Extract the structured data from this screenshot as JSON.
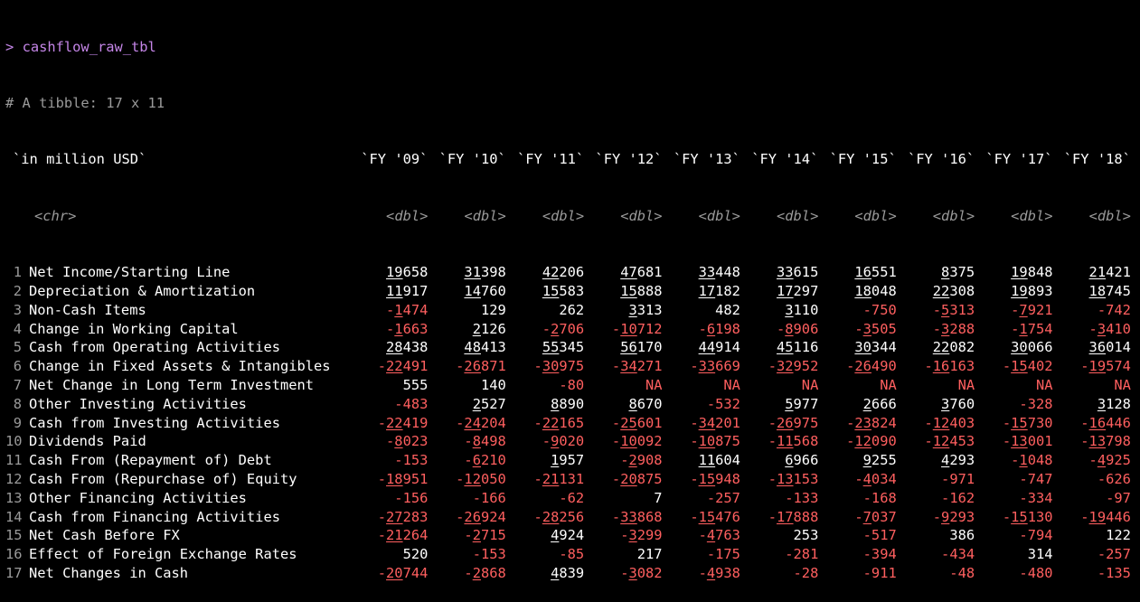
{
  "console": {
    "prompt": ">",
    "command": "cashflow_raw_tbl",
    "tibble_info": "# A tibble: 17 x 11"
  },
  "header": {
    "label_col": "`in million USD`",
    "label_type": "<chr>",
    "cols": [
      "`FY '09`",
      "`FY '10`",
      "`FY '11`",
      "`FY '12`",
      "`FY '13`",
      "`FY '14`",
      "`FY '15`",
      "`FY '16`",
      "`FY '17`",
      "`FY '18`"
    ],
    "types": [
      "<dbl>",
      "<dbl>",
      "<dbl>",
      "<dbl>",
      "<dbl>",
      "<dbl>",
      "<dbl>",
      "<dbl>",
      "<dbl>",
      "<dbl>"
    ]
  },
  "rows": [
    {
      "num": "1",
      "label": "Net Income/Starting Line",
      "values": [
        "19658",
        "31398",
        "42206",
        "47681",
        "33448",
        "33615",
        "16551",
        "8375",
        "19848",
        "21421"
      ]
    },
    {
      "num": "2",
      "label": "Depreciation & Amortization",
      "values": [
        "11917",
        "14760",
        "15583",
        "15888",
        "17182",
        "17297",
        "18048",
        "22308",
        "19893",
        "18745"
      ]
    },
    {
      "num": "3",
      "label": "Non-Cash Items",
      "values": [
        "-1474",
        "129",
        "262",
        "3313",
        "482",
        "3110",
        "-750",
        "-5313",
        "-7921",
        "-742"
      ]
    },
    {
      "num": "4",
      "label": "Change in Working Capital",
      "values": [
        "-1663",
        "2126",
        "-2706",
        "-10712",
        "-6198",
        "-8906",
        "-3505",
        "-3288",
        "-1754",
        "-3410"
      ]
    },
    {
      "num": "5",
      "label": "Cash from Operating Activities",
      "values": [
        "28438",
        "48413",
        "55345",
        "56170",
        "44914",
        "45116",
        "30344",
        "22082",
        "30066",
        "36014"
      ]
    },
    {
      "num": "6",
      "label": "Change in Fixed Assets & Intangibles",
      "values": [
        "-22491",
        "-26871",
        "-30975",
        "-34271",
        "-33669",
        "-32952",
        "-26490",
        "-16163",
        "-15402",
        "-19574"
      ]
    },
    {
      "num": "7",
      "label": "Net Change in Long Term Investment",
      "values": [
        "555",
        "140",
        "-80",
        "NA",
        "NA",
        "NA",
        "NA",
        "NA",
        "NA",
        "NA"
      ]
    },
    {
      "num": "8",
      "label": "Other Investing Activities",
      "values": [
        "-483",
        "2527",
        "8890",
        "8670",
        "-532",
        "5977",
        "2666",
        "3760",
        "-328",
        "3128"
      ]
    },
    {
      "num": "9",
      "label": "Cash from Investing Activities",
      "values": [
        "-22419",
        "-24204",
        "-22165",
        "-25601",
        "-34201",
        "-26975",
        "-23824",
        "-12403",
        "-15730",
        "-16446"
      ]
    },
    {
      "num": "10",
      "label": "Dividends Paid",
      "values": [
        "-8023",
        "-8498",
        "-9020",
        "-10092",
        "-10875",
        "-11568",
        "-12090",
        "-12453",
        "-13001",
        "-13798"
      ]
    },
    {
      "num": "11",
      "label": "Cash From (Repayment of) Debt",
      "values": [
        "-153",
        "-6210",
        "1957",
        "-2908",
        "11604",
        "6966",
        "9255",
        "4293",
        "-1048",
        "-4925"
      ]
    },
    {
      "num": "12",
      "label": "Cash From (Repurchase of) Equity",
      "values": [
        "-18951",
        "-12050",
        "-21131",
        "-20875",
        "-15948",
        "-13153",
        "-4034",
        "-971",
        "-747",
        "-626"
      ]
    },
    {
      "num": "13",
      "label": "Other Financing Activities",
      "values": [
        "-156",
        "-166",
        "-62",
        "7",
        "-257",
        "-133",
        "-168",
        "-162",
        "-334",
        "-97"
      ]
    },
    {
      "num": "14",
      "label": "Cash from Financing Activities",
      "values": [
        "-27283",
        "-26924",
        "-28256",
        "-33868",
        "-15476",
        "-17888",
        "-7037",
        "-9293",
        "-15130",
        "-19446"
      ]
    },
    {
      "num": "15",
      "label": "Net Cash Before FX",
      "values": [
        "-21264",
        "-2715",
        "4924",
        "-3299",
        "-4763",
        "253",
        "-517",
        "386",
        "-794",
        "122"
      ]
    },
    {
      "num": "16",
      "label": "Effect of Foreign Exchange Rates",
      "values": [
        "520",
        "-153",
        "-85",
        "217",
        "-175",
        "-281",
        "-394",
        "-434",
        "314",
        "-257"
      ]
    },
    {
      "num": "17",
      "label": "Net Changes in Cash",
      "values": [
        "-20744",
        "-2868",
        "4839",
        "-3082",
        "-4938",
        "-28",
        "-911",
        "-48",
        "-480",
        "-135"
      ]
    }
  ],
  "colors": {
    "background": "#000000",
    "text": "#ffffff",
    "negative": "#ff5f5f",
    "command": "#c586e8",
    "comment": "#9a9a9a"
  }
}
